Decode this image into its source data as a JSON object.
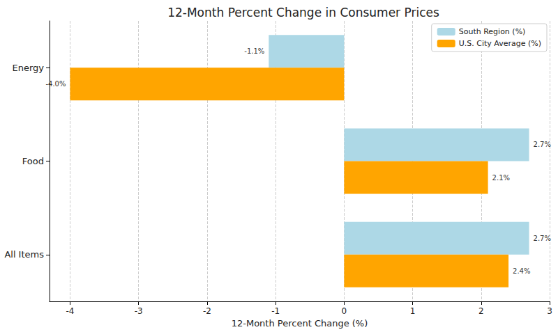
{
  "chart_data": {
    "type": "bar",
    "title": "12-Month Percent Change in Consumer Prices",
    "x_label": "12-Month Percent Change (%)",
    "orientation": "horizontal",
    "categories": [
      "All Items",
      "Food",
      "Energy"
    ],
    "series": [
      {
        "name": "South Region (%)",
        "color": "#add8e6",
        "values": [
          2.7,
          2.7,
          -1.1
        ],
        "value_labels": [
          "2.7%",
          "2.7%",
          "-1.1%"
        ]
      },
      {
        "name": "U.S. City Average (%)",
        "color": "#ffa500",
        "values": [
          2.4,
          2.1,
          -4.0
        ],
        "value_labels": [
          "2.4%",
          "2.1%",
          "-4.0%"
        ]
      }
    ],
    "xlim": [
      -4.3,
      3
    ],
    "xticks": [
      -4,
      -3,
      -2,
      -1,
      0,
      1,
      2,
      3
    ],
    "grid": true,
    "legend": "upper right",
    "data_labels": true
  }
}
